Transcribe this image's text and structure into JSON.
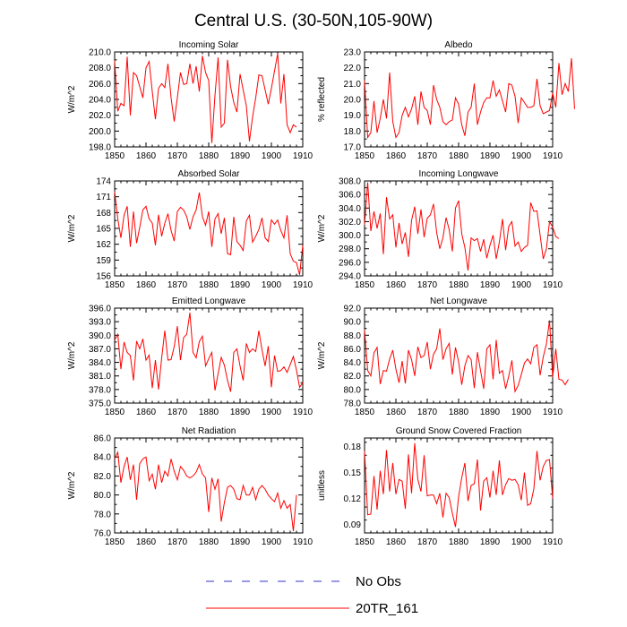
{
  "figure": {
    "title": "Central U.S. (30-50N,105-90W)",
    "legend": [
      {
        "label": "No Obs",
        "color": "#3333cc",
        "style": "dashed"
      },
      {
        "label": "20TR_161",
        "color": "#ff0000",
        "style": "solid"
      }
    ]
  },
  "chart_data": [
    {
      "type": "line",
      "title": "Incoming Solar",
      "xlabel": "",
      "ylabel": "W/m^2",
      "xlim": [
        1850,
        1910
      ],
      "xticks": [
        1850,
        1860,
        1870,
        1880,
        1890,
        1900,
        1910
      ],
      "ylim": [
        198,
        210
      ],
      "yticks": [
        198,
        200,
        202,
        204,
        206,
        208,
        210
      ],
      "ydecimals": 1,
      "x_start": 1850,
      "series": [
        {
          "name": "20TR_161",
          "color": "#ff0000",
          "values": [
            208.9,
            202.5,
            203.5,
            203.2,
            209.4,
            202.0,
            207.4,
            207.0,
            205.6,
            204.2,
            208.0,
            208.8,
            205.0,
            201.5,
            205.4,
            206.0,
            205.5,
            208.5,
            204.2,
            201.2,
            204.2,
            207.4,
            205.9,
            206.0,
            208.5,
            206.0,
            208.2,
            205.0,
            209.5,
            207.4,
            206.4,
            198.5,
            204.5,
            209.3,
            200.5,
            201.0,
            209.0,
            205.6,
            203.6,
            202.4,
            207.2,
            205.2,
            203.2,
            198.7,
            201.8,
            204.2,
            207.1,
            207.0,
            205.2,
            203.4,
            205.4,
            207.6,
            209.8,
            203.5,
            207.2,
            200.8,
            199.8,
            200.8,
            200.5
          ]
        }
      ]
    },
    {
      "type": "line",
      "title": "Albedo",
      "xlabel": "",
      "ylabel": "% reflected",
      "xlim": [
        1850,
        1910
      ],
      "xticks": [
        1850,
        1860,
        1870,
        1880,
        1890,
        1900,
        1910
      ],
      "ylim": [
        17,
        23
      ],
      "yticks": [
        17,
        18,
        19,
        20,
        21,
        22,
        23
      ],
      "ydecimals": 1,
      "x_start": 1850,
      "series": [
        {
          "name": "20TR_161",
          "color": "#ff0000",
          "values": [
            21.2,
            17.6,
            17.9,
            19.9,
            17.9,
            18.8,
            20.0,
            18.8,
            21.7,
            18.6,
            17.6,
            17.9,
            19.0,
            19.5,
            18.9,
            19.4,
            20.2,
            18.4,
            20.5,
            19.5,
            19.3,
            18.4,
            20.9,
            20.0,
            19.5,
            18.6,
            18.4,
            18.6,
            18.7,
            20.1,
            19.7,
            18.4,
            17.7,
            19.2,
            19.5,
            21.0,
            18.4,
            19.2,
            19.8,
            20.1,
            20.1,
            21.2,
            20.2,
            20.6,
            19.9,
            19.2,
            21.0,
            20.9,
            20.2,
            18.5,
            20.1,
            19.8,
            19.5,
            19.5,
            19.6,
            21.3,
            19.6,
            19.1,
            19.2,
            19.3,
            20.4,
            19.5,
            22.3,
            20.3,
            21.0,
            20.5,
            22.6,
            19.4
          ]
        }
      ]
    },
    {
      "type": "line",
      "title": "Absorbed Solar",
      "xlabel": "",
      "ylabel": "W/m^2",
      "xlim": [
        1850,
        1910
      ],
      "xticks": [
        1850,
        1860,
        1870,
        1880,
        1890,
        1900,
        1910
      ],
      "ylim": [
        156,
        174
      ],
      "yticks": [
        156,
        159,
        162,
        165,
        168,
        171,
        174
      ],
      "ydecimals": 0,
      "x_start": 1850,
      "series": [
        {
          "name": "20TR_161",
          "color": "#ff0000",
          "values": [
            172.0,
            166.8,
            163.2,
            167.5,
            169.2,
            161.5,
            168.2,
            162.2,
            165.2,
            168.5,
            169.2,
            166.8,
            166.0,
            161.8,
            167.6,
            163.5,
            166.0,
            167.8,
            164.6,
            162.6,
            168.2,
            169.0,
            168.5,
            167.2,
            164.8,
            167.2,
            168.5,
            171.8,
            167.2,
            165.6,
            168.2,
            161.5,
            166.8,
            167.8,
            164.0,
            167.0,
            160.2,
            160.0,
            167.2,
            162.5,
            161.8,
            160.8,
            166.4,
            167.5,
            162.4,
            163.5,
            164.8,
            167.0,
            163.2,
            162.5,
            166.6,
            165.8,
            166.6,
            164.6,
            163.2,
            167.5,
            160.2,
            158.8,
            158.5,
            156.2,
            161.8
          ]
        }
      ]
    },
    {
      "type": "line",
      "title": "Incoming Longwave",
      "xlabel": "",
      "ylabel": "W/m^2",
      "xlim": [
        1850,
        1910
      ],
      "xticks": [
        1850,
        1860,
        1870,
        1880,
        1890,
        1900,
        1910
      ],
      "ylim": [
        294,
        308
      ],
      "yticks": [
        294,
        296,
        298,
        300,
        302,
        304,
        306,
        308
      ],
      "ydecimals": 1,
      "x_start": 1850,
      "series": [
        {
          "name": "20TR_161",
          "color": "#ff0000",
          "values": [
            301.5,
            307.8,
            300.6,
            303.5,
            301.0,
            303.2,
            297.2,
            305.6,
            302.4,
            303.0,
            298.2,
            301.8,
            298.7,
            300.4,
            296.8,
            302.2,
            304.2,
            300.2,
            303.8,
            299.7,
            302.5,
            303.0,
            304.6,
            300.4,
            298.0,
            299.6,
            302.6,
            300.8,
            297.6,
            304.0,
            305.1,
            300.2,
            298.2,
            294.8,
            299.6,
            299.2,
            299.5,
            297.6,
            299.4,
            296.6,
            298.5,
            300.0,
            296.5,
            299.0,
            302.4,
            297.8,
            301.3,
            302.0,
            298.4,
            299.0,
            297.6,
            298.2,
            298.5,
            304.8,
            303.5,
            303.6,
            300.0,
            296.5,
            298.0,
            302.0,
            301.2,
            299.8,
            299.5
          ]
        }
      ]
    },
    {
      "type": "line",
      "title": "Emitted Longwave",
      "xlabel": "",
      "ylabel": "W/m^2",
      "xlim": [
        1850,
        1910
      ],
      "xticks": [
        1850,
        1860,
        1870,
        1880,
        1890,
        1900,
        1910
      ],
      "ylim": [
        375,
        396
      ],
      "yticks": [
        375,
        378,
        381,
        384,
        387,
        390,
        393,
        396
      ],
      "ydecimals": 1,
      "x_start": 1850,
      "series": [
        {
          "name": "20TR_161",
          "color": "#ff0000",
          "values": [
            389.0,
            390.2,
            382.5,
            388.5,
            386.2,
            385.5,
            380.0,
            388.7,
            387.0,
            389.2,
            384.5,
            385.6,
            378.3,
            384.5,
            378.0,
            385.0,
            391.0,
            384.5,
            384.6,
            387.5,
            392.0,
            384.5,
            389.5,
            390.2,
            395.0,
            386.2,
            385.0,
            388.6,
            389.8,
            383.2,
            384.8,
            386.2,
            377.8,
            381.5,
            385.1,
            383.4,
            380.0,
            377.5,
            386.2,
            387.0,
            383.2,
            380.0,
            388.2,
            386.2,
            387.0,
            386.4,
            391.0,
            386.8,
            383.2,
            387.6,
            378.5,
            385.5,
            382.0,
            382.2,
            383.0,
            381.8,
            383.5,
            385.3,
            382.3,
            378.5,
            379.5
          ]
        }
      ]
    },
    {
      "type": "line",
      "title": "Net Longwave",
      "xlabel": "",
      "ylabel": "W/m^2",
      "xlim": [
        1850,
        1910
      ],
      "xticks": [
        1850,
        1860,
        1870,
        1880,
        1890,
        1900,
        1910
      ],
      "ylim": [
        78,
        92
      ],
      "yticks": [
        78,
        80,
        82,
        84,
        86,
        88,
        90,
        92
      ],
      "ydecimals": 1,
      "x_start": 1850,
      "series": [
        {
          "name": "20TR_161",
          "color": "#ff0000",
          "values": [
            88.8,
            82.8,
            82.0,
            85.4,
            86.2,
            80.8,
            82.8,
            82.7,
            84.5,
            85.8,
            83.0,
            81.0,
            84.2,
            80.9,
            85.8,
            84.4,
            82.0,
            86.3,
            84.7,
            85.0,
            87.0,
            83.0,
            85.2,
            86.0,
            89.0,
            84.4,
            86.0,
            86.8,
            82.2,
            86.2,
            84.1,
            80.7,
            83.5,
            85.0,
            84.4,
            80.2,
            85.5,
            82.8,
            80.1,
            86.0,
            86.6,
            81.5,
            87.3,
            82.4,
            82.8,
            80.1,
            82.0,
            84.3,
            79.7,
            80.6,
            82.2,
            83.9,
            84.5,
            83.8,
            86.2,
            86.6,
            82.1,
            84.8,
            86.7,
            90.2,
            81.8,
            86.0,
            81.5,
            81.4,
            80.7,
            81.5
          ]
        }
      ]
    },
    {
      "type": "line",
      "title": "Net Radiation",
      "xlabel": "",
      "ylabel": "W/m^2",
      "xlim": [
        1850,
        1910
      ],
      "xticks": [
        1850,
        1860,
        1870,
        1880,
        1890,
        1900,
        1910
      ],
      "ylim": [
        76,
        86
      ],
      "yticks": [
        76,
        78,
        80,
        82,
        84,
        86
      ],
      "ydecimals": 1,
      "x_start": 1850,
      "series": [
        {
          "name": "20TR_161",
          "color": "#ff0000",
          "values": [
            83.8,
            84.5,
            81.3,
            83.0,
            84.0,
            81.6,
            83.2,
            79.5,
            83.3,
            83.8,
            84.0,
            81.5,
            82.2,
            80.6,
            83.2,
            81.3,
            82.5,
            82.0,
            83.8,
            82.5,
            81.6,
            83.0,
            82.6,
            82.0,
            81.8,
            82.0,
            82.4,
            83.2,
            82.2,
            81.8,
            78.2,
            81.8,
            80.6,
            81.7,
            77.2,
            79.2,
            80.8,
            81.0,
            80.6,
            79.6,
            79.5,
            81.0,
            80.0,
            80.0,
            80.8,
            79.5,
            80.6,
            81.0,
            80.6,
            80.0,
            79.6,
            79.3,
            80.2,
            78.6,
            79.4,
            78.6,
            79.0,
            76.2,
            80.0
          ]
        }
      ]
    },
    {
      "type": "line",
      "title": "Ground Snow Covered Fraction",
      "xlabel": "",
      "ylabel": "unitless",
      "xlim": [
        1850,
        1910
      ],
      "xticks": [
        1850,
        1860,
        1870,
        1880,
        1890,
        1900,
        1910
      ],
      "ylim": [
        0.08,
        0.19
      ],
      "yticks": [
        0.09,
        0.12,
        0.15,
        0.18
      ],
      "ydecimals": 2,
      "x_start": 1850,
      "series": [
        {
          "name": "20TR_161",
          "color": "#ff0000",
          "values": [
            0.175,
            0.101,
            0.102,
            0.146,
            0.107,
            0.152,
            0.125,
            0.176,
            0.128,
            0.161,
            0.125,
            0.142,
            0.14,
            0.108,
            0.171,
            0.126,
            0.184,
            0.142,
            0.128,
            0.17,
            0.123,
            0.124,
            0.124,
            0.114,
            0.126,
            0.098,
            0.126,
            0.121,
            0.103,
            0.087,
            0.122,
            0.144,
            0.161,
            0.117,
            0.135,
            0.137,
            0.165,
            0.106,
            0.14,
            0.144,
            0.121,
            0.152,
            0.124,
            0.164,
            0.124,
            0.136,
            0.143,
            0.141,
            0.142,
            0.136,
            0.118,
            0.15,
            0.112,
            0.114,
            0.131,
            0.175,
            0.141,
            0.157,
            0.164,
            0.165,
            0.12
          ]
        }
      ]
    }
  ]
}
